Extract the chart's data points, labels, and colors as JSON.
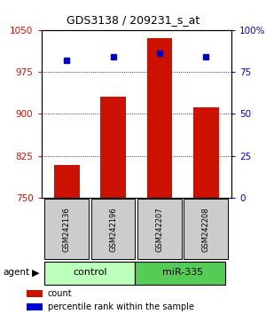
{
  "title": "GDS3138 / 209231_s_at",
  "samples": [
    "GSM242136",
    "GSM242196",
    "GSM242207",
    "GSM242208"
  ],
  "counts": [
    808,
    930,
    1035,
    912
  ],
  "percentile_ranks": [
    82,
    84,
    86,
    84
  ],
  "ylim_left": [
    750,
    1050
  ],
  "ylim_right": [
    0,
    100
  ],
  "yticks_left": [
    750,
    825,
    900,
    975,
    1050
  ],
  "yticks_right": [
    0,
    25,
    50,
    75,
    100
  ],
  "bar_color": "#cc1100",
  "dot_color": "#0000cc",
  "control_color": "#bbffbb",
  "mir_color": "#55cc55",
  "sample_box_color": "#cccccc",
  "gridline_ticks": [
    825,
    900,
    975
  ]
}
